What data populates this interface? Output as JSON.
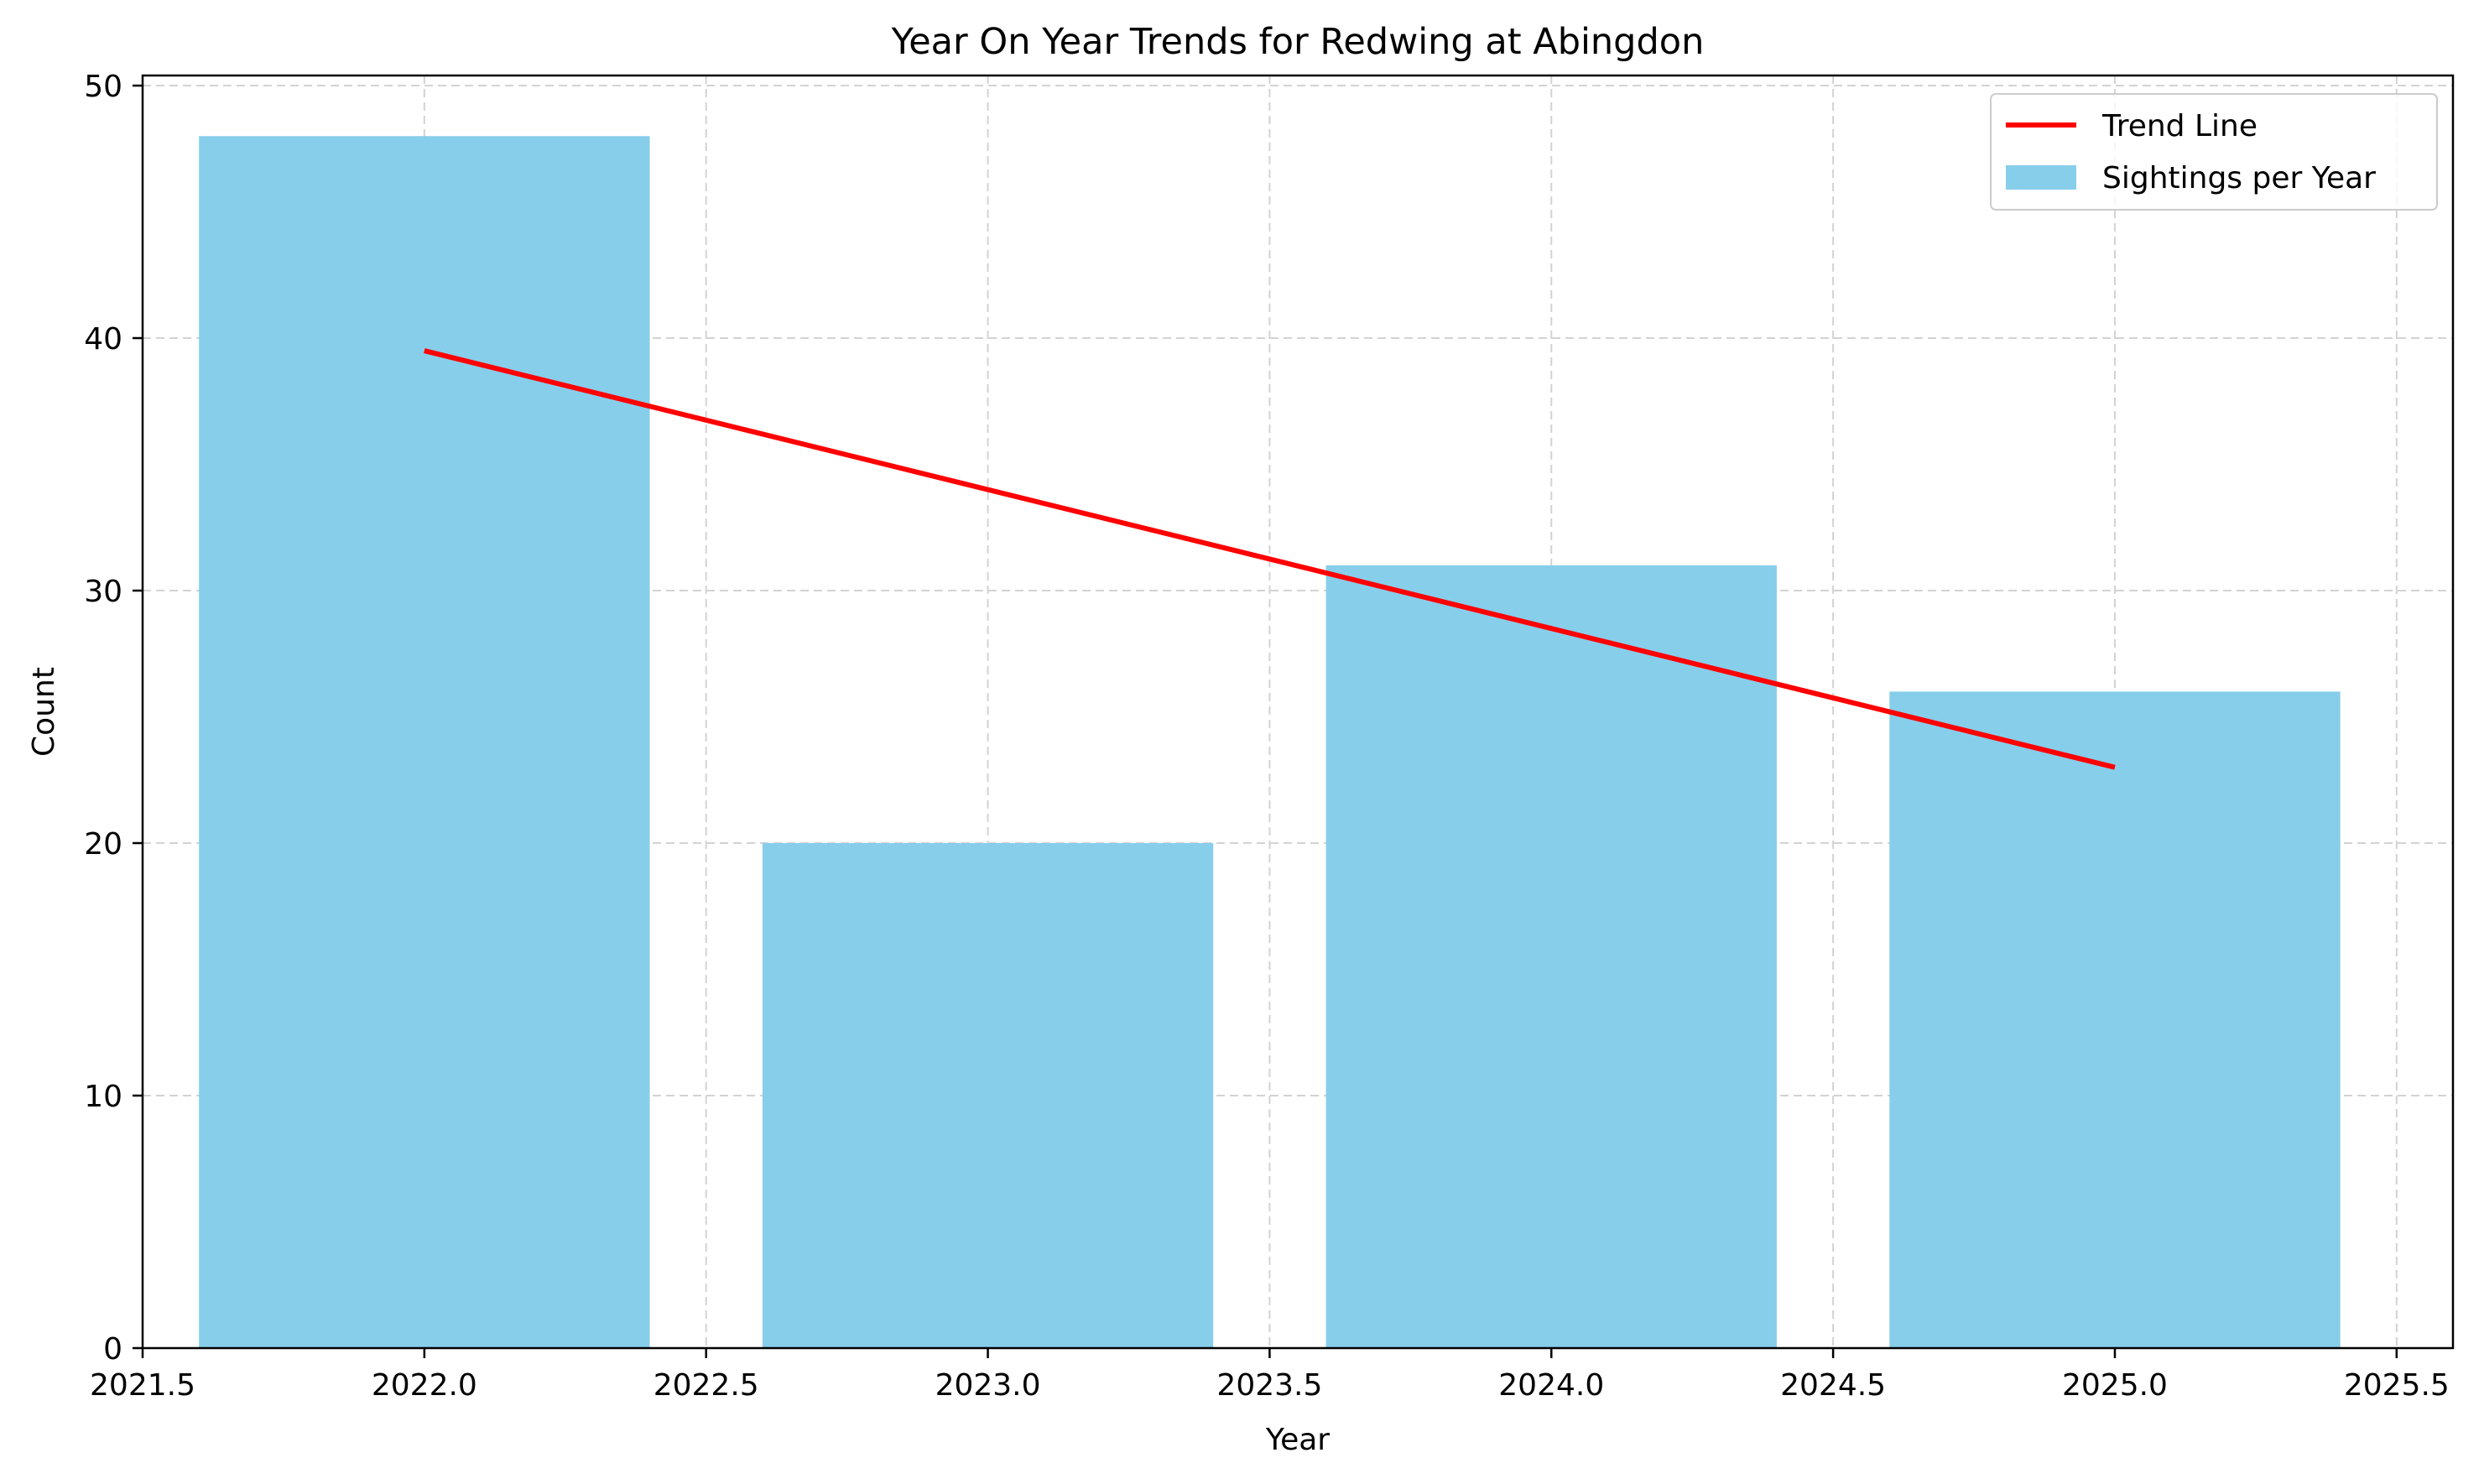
{
  "colors": {
    "bar": "#87CEEB",
    "trend": "#FF0000",
    "grid": "#D3D3D3",
    "axis": "#000000",
    "legend_border": "#CCCCCC"
  },
  "chart_data": {
    "type": "bar",
    "title": "Year On Year Trends for Redwing at Abingdon",
    "xlabel": "Year",
    "ylabel": "Count",
    "xlim": [
      2021.5,
      2025.6
    ],
    "ylim": [
      0,
      50.4
    ],
    "grid": true,
    "grid_style": "dashed",
    "legend_position": "top-right",
    "x_ticks": [
      "2021.5",
      "2022.0",
      "2022.5",
      "2023.0",
      "2023.5",
      "2024.0",
      "2024.5",
      "2025.0",
      "2025.5"
    ],
    "y_ticks": [
      "0",
      "10",
      "20",
      "30",
      "40",
      "50"
    ],
    "bar_width": 0.8,
    "series": [
      {
        "name": "Sightings per Year",
        "type": "bar",
        "x": [
          2022,
          2023,
          2024,
          2025
        ],
        "values": [
          48,
          20,
          31,
          26
        ]
      },
      {
        "name": "Trend Line",
        "type": "line",
        "x": [
          2022,
          2025
        ],
        "values": [
          39.5,
          23
        ]
      }
    ]
  }
}
